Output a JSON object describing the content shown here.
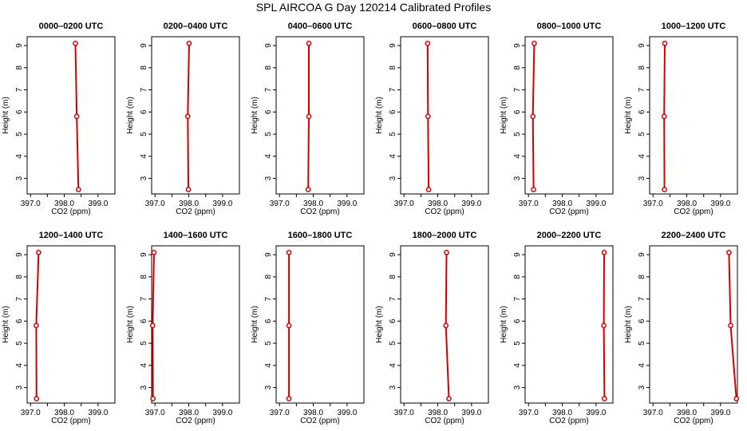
{
  "figure": {
    "title": "SPL AIRCOA G  Day 120214  Calibrated Profiles"
  },
  "style": {
    "line_color": "#d10000",
    "axis_color": "#000000"
  },
  "chart_data": [
    {
      "type": "line",
      "title": "0000–0200 UTC",
      "xlabel": "CO2 (ppm)",
      "ylabel": "Height (m)",
      "xlim": [
        396.9,
        399.5
      ],
      "ylim": [
        2.3,
        9.4
      ],
      "xticks": [
        397.0,
        397.5,
        398.0,
        398.5,
        399.0
      ],
      "xtick_labels": [
        "397.0",
        "",
        "398.0",
        "",
        "399.0"
      ],
      "yticks": [
        3,
        4,
        5,
        6,
        7,
        8,
        9
      ],
      "ytick_labels": [
        "3",
        "4",
        "5",
        "6",
        "7",
        "8",
        "9"
      ],
      "series": [
        {
          "x": [
            398.42,
            398.37,
            398.33
          ],
          "y": [
            2.5,
            5.8,
            9.1
          ]
        }
      ]
    },
    {
      "type": "line",
      "title": "0200–0400 UTC",
      "xlabel": "CO2 (ppm)",
      "ylabel": "Height (m)",
      "xlim": [
        396.9,
        399.5
      ],
      "ylim": [
        2.3,
        9.4
      ],
      "xticks": [
        397.0,
        397.5,
        398.0,
        398.5,
        399.0
      ],
      "xtick_labels": [
        "397.0",
        "",
        "398.0",
        "",
        "399.0"
      ],
      "yticks": [
        3,
        4,
        5,
        6,
        7,
        8,
        9
      ],
      "ytick_labels": [
        "3",
        "4",
        "5",
        "6",
        "7",
        "8",
        "9"
      ],
      "series": [
        {
          "x": [
            397.99,
            397.97,
            398.01
          ],
          "y": [
            2.5,
            5.8,
            9.1
          ]
        }
      ]
    },
    {
      "type": "line",
      "title": "0400–0600 UTC",
      "xlabel": "CO2 (ppm)",
      "ylabel": "Height (m)",
      "xlim": [
        396.9,
        399.5
      ],
      "ylim": [
        2.3,
        9.4
      ],
      "xticks": [
        397.0,
        397.5,
        398.0,
        398.5,
        399.0
      ],
      "xtick_labels": [
        "397.0",
        "",
        "398.0",
        "",
        "399.0"
      ],
      "yticks": [
        3,
        4,
        5,
        6,
        7,
        8,
        9
      ],
      "ytick_labels": [
        "3",
        "4",
        "5",
        "6",
        "7",
        "8",
        "9"
      ],
      "series": [
        {
          "x": [
            397.85,
            397.87,
            397.87
          ],
          "y": [
            2.5,
            5.8,
            9.1
          ]
        }
      ]
    },
    {
      "type": "line",
      "title": "0600–0800 UTC",
      "xlabel": "CO2 (ppm)",
      "ylabel": "Height (m)",
      "xlim": [
        396.9,
        399.5
      ],
      "ylim": [
        2.3,
        9.4
      ],
      "xticks": [
        397.0,
        397.5,
        398.0,
        398.5,
        399.0
      ],
      "xtick_labels": [
        "397.0",
        "",
        "398.0",
        "",
        "399.0"
      ],
      "yticks": [
        3,
        4,
        5,
        6,
        7,
        8,
        9
      ],
      "ytick_labels": [
        "3",
        "4",
        "5",
        "6",
        "7",
        "8",
        "9"
      ],
      "series": [
        {
          "x": [
            397.73,
            397.71,
            397.7
          ],
          "y": [
            2.5,
            5.8,
            9.1
          ]
        }
      ]
    },
    {
      "type": "line",
      "title": "0800–1000 UTC",
      "xlabel": "CO2 (ppm)",
      "ylabel": "Height (m)",
      "xlim": [
        396.9,
        399.5
      ],
      "ylim": [
        2.3,
        9.4
      ],
      "xticks": [
        397.0,
        397.5,
        398.0,
        398.5,
        399.0
      ],
      "xtick_labels": [
        "397.0",
        "",
        "398.0",
        "",
        "399.0"
      ],
      "yticks": [
        3,
        4,
        5,
        6,
        7,
        8,
        9
      ],
      "ytick_labels": [
        "3",
        "4",
        "5",
        "6",
        "7",
        "8",
        "9"
      ],
      "series": [
        {
          "x": [
            397.15,
            397.13,
            397.17
          ],
          "y": [
            2.5,
            5.8,
            9.1
          ]
        }
      ]
    },
    {
      "type": "line",
      "title": "1000–1200 UTC",
      "xlabel": "CO2 (ppm)",
      "ylabel": "Height (m)",
      "xlim": [
        396.9,
        399.5
      ],
      "ylim": [
        2.3,
        9.4
      ],
      "xticks": [
        397.0,
        397.5,
        398.0,
        398.5,
        399.0
      ],
      "xtick_labels": [
        "397.0",
        "",
        "398.0",
        "",
        "399.0"
      ],
      "yticks": [
        3,
        4,
        5,
        6,
        7,
        8,
        9
      ],
      "ytick_labels": [
        "3",
        "4",
        "5",
        "6",
        "7",
        "8",
        "9"
      ],
      "series": [
        {
          "x": [
            397.34,
            397.33,
            397.35
          ],
          "y": [
            2.5,
            5.8,
            9.1
          ]
        }
      ]
    },
    {
      "type": "line",
      "title": "1200–1400 UTC",
      "xlabel": "CO2 (ppm)",
      "ylabel": "Height (m)",
      "xlim": [
        396.9,
        399.5
      ],
      "ylim": [
        2.3,
        9.4
      ],
      "xticks": [
        397.0,
        397.5,
        398.0,
        398.5,
        399.0
      ],
      "xtick_labels": [
        "397.0",
        "",
        "398.0",
        "",
        "399.0"
      ],
      "yticks": [
        3,
        4,
        5,
        6,
        7,
        8,
        9
      ],
      "ytick_labels": [
        "3",
        "4",
        "5",
        "6",
        "7",
        "8",
        "9"
      ],
      "series": [
        {
          "x": [
            397.18,
            397.17,
            397.24
          ],
          "y": [
            2.5,
            5.8,
            9.1
          ]
        }
      ]
    },
    {
      "type": "line",
      "title": "1400–1600 UTC",
      "xlabel": "CO2 (ppm)",
      "ylabel": "Height (m)",
      "xlim": [
        396.9,
        399.5
      ],
      "ylim": [
        2.3,
        9.4
      ],
      "xticks": [
        397.0,
        397.5,
        398.0,
        398.5,
        399.0
      ],
      "xtick_labels": [
        "397.0",
        "",
        "398.0",
        "",
        "399.0"
      ],
      "yticks": [
        3,
        4,
        5,
        6,
        7,
        8,
        9
      ],
      "ytick_labels": [
        "3",
        "4",
        "5",
        "6",
        "7",
        "8",
        "9"
      ],
      "series": [
        {
          "x": [
            396.94,
            396.93,
            396.97
          ],
          "y": [
            2.5,
            5.8,
            9.1
          ]
        }
      ]
    },
    {
      "type": "line",
      "title": "1600–1800 UTC",
      "xlabel": "CO2 (ppm)",
      "ylabel": "Height (m)",
      "xlim": [
        396.9,
        399.5
      ],
      "ylim": [
        2.3,
        9.4
      ],
      "xticks": [
        397.0,
        397.5,
        398.0,
        398.5,
        399.0
      ],
      "xtick_labels": [
        "397.0",
        "",
        "398.0",
        "",
        "399.0"
      ],
      "yticks": [
        3,
        4,
        5,
        6,
        7,
        8,
        9
      ],
      "ytick_labels": [
        "3",
        "4",
        "5",
        "6",
        "7",
        "8",
        "9"
      ],
      "series": [
        {
          "x": [
            397.28,
            397.28,
            397.28
          ],
          "y": [
            2.5,
            5.8,
            9.1
          ]
        }
      ]
    },
    {
      "type": "line",
      "title": "1800–2000 UTC",
      "xlabel": "CO2 (ppm)",
      "ylabel": "Height (m)",
      "xlim": [
        396.9,
        399.5
      ],
      "ylim": [
        2.3,
        9.4
      ],
      "xticks": [
        397.0,
        397.5,
        398.0,
        398.5,
        399.0
      ],
      "xtick_labels": [
        "397.0",
        "",
        "398.0",
        "",
        "399.0"
      ],
      "yticks": [
        3,
        4,
        5,
        6,
        7,
        8,
        9
      ],
      "ytick_labels": [
        "3",
        "4",
        "5",
        "6",
        "7",
        "8",
        "9"
      ],
      "series": [
        {
          "x": [
            398.33,
            398.24,
            398.26
          ],
          "y": [
            2.5,
            5.8,
            9.1
          ]
        }
      ]
    },
    {
      "type": "line",
      "title": "2000–2200 UTC",
      "xlabel": "CO2 (ppm)",
      "ylabel": "Height (m)",
      "xlim": [
        396.9,
        399.5
      ],
      "ylim": [
        2.3,
        9.4
      ],
      "xticks": [
        397.0,
        397.5,
        398.0,
        398.5,
        399.0
      ],
      "xtick_labels": [
        "397.0",
        "",
        "398.0",
        "",
        "399.0"
      ],
      "yticks": [
        3,
        4,
        5,
        6,
        7,
        8,
        9
      ],
      "ytick_labels": [
        "3",
        "4",
        "5",
        "6",
        "7",
        "8",
        "9"
      ],
      "series": [
        {
          "x": [
            399.25,
            399.23,
            399.24
          ],
          "y": [
            2.5,
            5.8,
            9.1
          ]
        }
      ]
    },
    {
      "type": "line",
      "title": "2200–2400 UTC",
      "xlabel": "CO2 (ppm)",
      "ylabel": "Height (m)",
      "xlim": [
        396.9,
        399.5
      ],
      "ylim": [
        2.3,
        9.4
      ],
      "xticks": [
        397.0,
        397.5,
        398.0,
        398.5,
        399.0
      ],
      "xtick_labels": [
        "397.0",
        "",
        "398.0",
        "",
        "399.0"
      ],
      "yticks": [
        3,
        4,
        5,
        6,
        7,
        8,
        9
      ],
      "ytick_labels": [
        "3",
        "4",
        "5",
        "6",
        "7",
        "8",
        "9"
      ],
      "series": [
        {
          "x": [
            399.47,
            399.3,
            399.25
          ],
          "y": [
            2.5,
            5.8,
            9.1
          ]
        }
      ]
    }
  ]
}
